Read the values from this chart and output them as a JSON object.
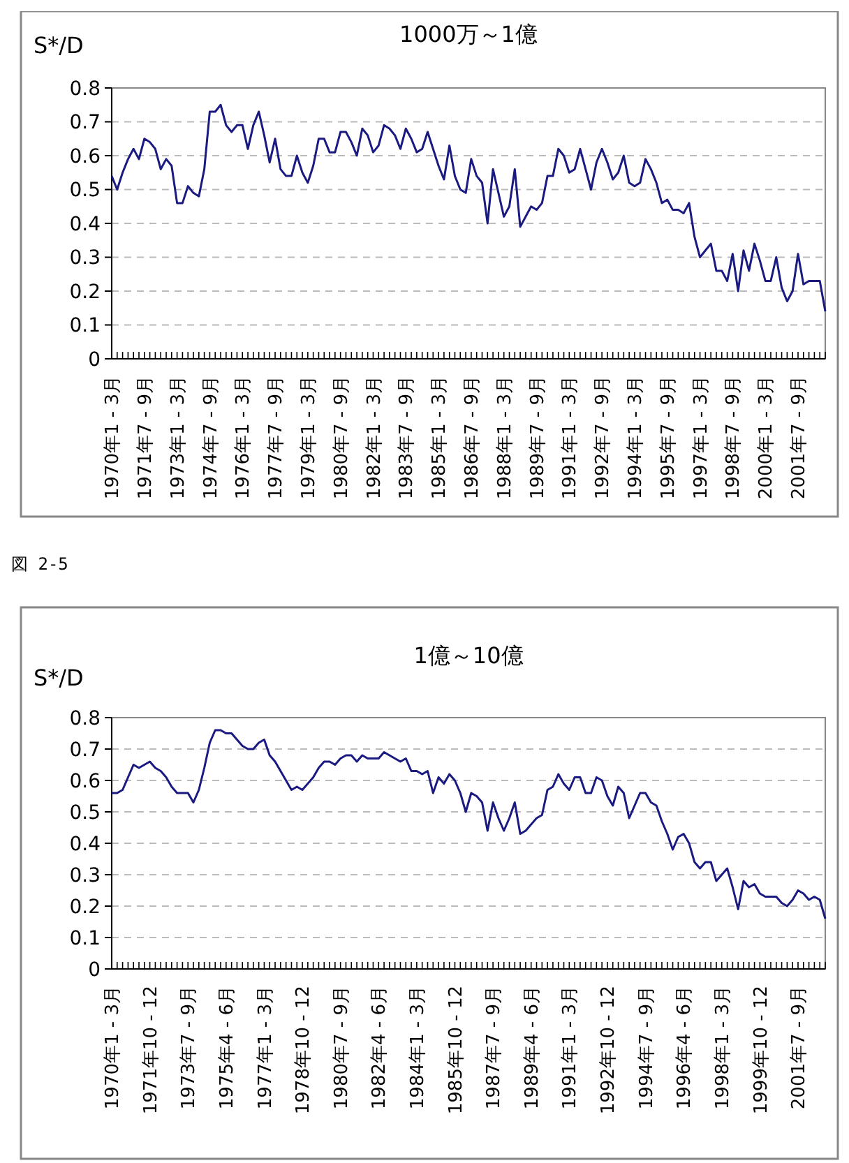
{
  "chart_data": [
    {
      "type": "line",
      "title": "1000万～1億",
      "ylabel": "S*/D",
      "annotations": [
        "図 2-5"
      ],
      "grid": "y",
      "marker": "none",
      "line_style": "solid",
      "ylim": [
        0,
        0.8
      ],
      "yticks": [
        0,
        0.1,
        0.2,
        0.3,
        0.4,
        0.5,
        0.6,
        0.7,
        0.8
      ],
      "categories": [
        "1970年1 - 3月",
        null,
        null,
        null,
        null,
        null,
        "1971年7 - 9月",
        null,
        null,
        null,
        null,
        null,
        "1973年1 - 3月",
        null,
        null,
        null,
        null,
        null,
        "1974年7 - 9月",
        null,
        null,
        null,
        null,
        null,
        "1976年1 - 3月",
        null,
        null,
        null,
        null,
        null,
        "1977年7 - 9月",
        null,
        null,
        null,
        null,
        null,
        "1979年1 - 3月",
        null,
        null,
        null,
        null,
        null,
        "1980年7 - 9月",
        null,
        null,
        null,
        null,
        null,
        "1982年1 - 3月",
        null,
        null,
        null,
        null,
        null,
        "1983年7 - 9月",
        null,
        null,
        null,
        null,
        null,
        "1985年1 - 3月",
        null,
        null,
        null,
        null,
        null,
        "1986年7 - 9月",
        null,
        null,
        null,
        null,
        null,
        "1988年1 - 3月",
        null,
        null,
        null,
        null,
        null,
        "1989年7 - 9月",
        null,
        null,
        null,
        null,
        null,
        "1991年1 - 3月",
        null,
        null,
        null,
        null,
        null,
        "1992年7 - 9月",
        null,
        null,
        null,
        null,
        null,
        "1994年1 - 3月",
        null,
        null,
        null,
        null,
        null,
        "1995年7 - 9月",
        null,
        null,
        null,
        null,
        null,
        "1997年1 - 3月",
        null,
        null,
        null,
        null,
        null,
        "1998年7 - 9月",
        null,
        null,
        null,
        null,
        null,
        "2000年1 - 3月",
        null,
        null,
        null,
        null,
        null,
        "2001年7 - 9月",
        null,
        null,
        null,
        null,
        null
      ],
      "series": [
        {
          "color": "#1a1a80",
          "values": [
            0.54,
            0.5,
            0.55,
            0.59,
            0.62,
            0.59,
            0.65,
            0.64,
            0.62,
            0.56,
            0.59,
            0.57,
            0.46,
            0.46,
            0.51,
            0.49,
            0.48,
            0.56,
            0.73,
            0.73,
            0.75,
            0.69,
            0.67,
            0.69,
            0.69,
            0.62,
            0.69,
            0.73,
            0.66,
            0.58,
            0.65,
            0.56,
            0.54,
            0.54,
            0.6,
            0.55,
            0.52,
            0.57,
            0.65,
            0.65,
            0.61,
            0.61,
            0.67,
            0.67,
            0.64,
            0.6,
            0.68,
            0.66,
            0.61,
            0.63,
            0.69,
            0.68,
            0.66,
            0.62,
            0.68,
            0.65,
            0.61,
            0.62,
            0.67,
            0.62,
            0.57,
            0.53,
            0.63,
            0.54,
            0.5,
            0.49,
            0.59,
            0.54,
            0.52,
            0.4,
            0.56,
            0.49,
            0.42,
            0.45,
            0.56,
            0.39,
            0.42,
            0.45,
            0.44,
            0.46,
            0.54,
            0.54,
            0.62,
            0.6,
            0.55,
            0.56,
            0.62,
            0.56,
            0.5,
            0.58,
            0.62,
            0.58,
            0.53,
            0.55,
            0.6,
            0.52,
            0.51,
            0.52,
            0.59,
            0.56,
            0.52,
            0.46,
            0.47,
            0.44,
            0.44,
            0.43,
            0.46,
            0.36,
            0.3,
            0.32,
            0.34,
            0.26,
            0.26,
            0.23,
            0.31,
            0.2,
            0.32,
            0.26,
            0.34,
            0.29,
            0.23,
            0.23,
            0.3,
            0.21,
            0.17,
            0.2,
            0.31,
            0.22,
            0.23,
            0.23,
            0.23,
            0.14
          ]
        }
      ]
    },
    {
      "type": "line",
      "title": "1億～10億",
      "ylabel": "S*/D",
      "grid": "y",
      "marker": "none",
      "line_style": "solid",
      "ylim": [
        0,
        0.8
      ],
      "yticks": [
        0,
        0.1,
        0.2,
        0.3,
        0.4,
        0.5,
        0.6,
        0.7,
        0.8
      ],
      "categories": [
        "1970年1 - 3月",
        null,
        null,
        null,
        null,
        null,
        null,
        "1971年10 - 12",
        null,
        null,
        null,
        null,
        null,
        null,
        "1973年7 - 9月",
        null,
        null,
        null,
        null,
        null,
        null,
        "1975年4 - 6月",
        null,
        null,
        null,
        null,
        null,
        null,
        "1977年1 - 3月",
        null,
        null,
        null,
        null,
        null,
        null,
        "1978年10 - 12",
        null,
        null,
        null,
        null,
        null,
        null,
        "1980年7 - 9月",
        null,
        null,
        null,
        null,
        null,
        null,
        "1982年4 - 6月",
        null,
        null,
        null,
        null,
        null,
        null,
        "1984年1 - 3月",
        null,
        null,
        null,
        null,
        null,
        null,
        "1985年10 - 12",
        null,
        null,
        null,
        null,
        null,
        null,
        "1987年7 - 9月",
        null,
        null,
        null,
        null,
        null,
        null,
        "1989年4 - 6月",
        null,
        null,
        null,
        null,
        null,
        null,
        "1991年1 - 3月",
        null,
        null,
        null,
        null,
        null,
        null,
        "1992年10 - 12",
        null,
        null,
        null,
        null,
        null,
        null,
        "1994年7 - 9月",
        null,
        null,
        null,
        null,
        null,
        null,
        "1996年4 - 6月",
        null,
        null,
        null,
        null,
        null,
        null,
        "1998年1 - 3月",
        null,
        null,
        null,
        null,
        null,
        null,
        "1999年10 - 12",
        null,
        null,
        null,
        null,
        null,
        null,
        "2001年7 - 9月",
        null,
        null,
        null,
        null,
        null
      ],
      "series": [
        {
          "color": "#1a1a80",
          "values": [
            0.56,
            0.56,
            0.57,
            0.61,
            0.65,
            0.64,
            0.65,
            0.66,
            0.64,
            0.63,
            0.61,
            0.58,
            0.56,
            0.56,
            0.56,
            0.53,
            0.57,
            0.64,
            0.72,
            0.76,
            0.76,
            0.75,
            0.75,
            0.73,
            0.71,
            0.7,
            0.7,
            0.72,
            0.73,
            0.68,
            0.66,
            0.63,
            0.6,
            0.57,
            0.58,
            0.57,
            0.59,
            0.61,
            0.64,
            0.66,
            0.66,
            0.65,
            0.67,
            0.68,
            0.68,
            0.66,
            0.68,
            0.67,
            0.67,
            0.67,
            0.69,
            0.68,
            0.67,
            0.66,
            0.67,
            0.63,
            0.63,
            0.62,
            0.63,
            0.56,
            0.61,
            0.59,
            0.62,
            0.6,
            0.56,
            0.5,
            0.56,
            0.55,
            0.53,
            0.44,
            0.53,
            0.48,
            0.44,
            0.48,
            0.53,
            0.43,
            0.44,
            0.46,
            0.48,
            0.49,
            0.57,
            0.58,
            0.62,
            0.59,
            0.57,
            0.61,
            0.61,
            0.56,
            0.56,
            0.61,
            0.6,
            0.55,
            0.52,
            0.58,
            0.56,
            0.48,
            0.52,
            0.56,
            0.56,
            0.53,
            0.52,
            0.47,
            0.43,
            0.38,
            0.42,
            0.43,
            0.4,
            0.34,
            0.32,
            0.34,
            0.34,
            0.28,
            0.3,
            0.32,
            0.26,
            0.19,
            0.28,
            0.26,
            0.27,
            0.24,
            0.23,
            0.23,
            0.23,
            0.21,
            0.2,
            0.22,
            0.25,
            0.24,
            0.22,
            0.23,
            0.22,
            0.16
          ]
        }
      ]
    }
  ]
}
